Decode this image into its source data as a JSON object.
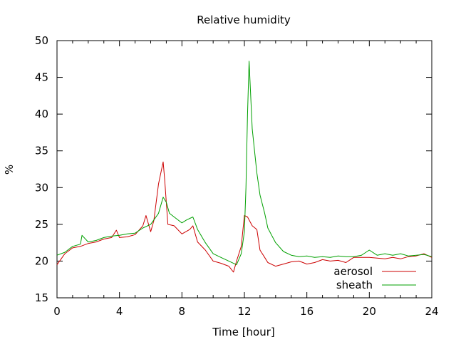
{
  "chart_data": {
    "type": "line",
    "title": "Relative humidity",
    "xlabel": "Time [hour]",
    "ylabel": "%",
    "xlim": [
      0,
      24
    ],
    "ylim": [
      15,
      50
    ],
    "xticks": [
      0,
      4,
      8,
      12,
      16,
      20,
      24
    ],
    "yticks": [
      15,
      20,
      25,
      30,
      35,
      40,
      45,
      50
    ],
    "grid": false,
    "legend_position": "bottom-right",
    "series": [
      {
        "name": "aerosol",
        "color": "#cc0000",
        "x": [
          0,
          0.5,
          1,
          1.5,
          2,
          2.5,
          3,
          3.5,
          3.8,
          4,
          4.5,
          5,
          5.5,
          5.7,
          6,
          6.2,
          6.5,
          6.8,
          6.9,
          7.1,
          7.5,
          8,
          8.5,
          8.7,
          9,
          9.5,
          10,
          10.5,
          11,
          11.3,
          11.5,
          11.8,
          12,
          12.2,
          12.5,
          12.8,
          13,
          13.3,
          13.5,
          14,
          14.5,
          15,
          15.5,
          16,
          16.5,
          17,
          17.5,
          18,
          18.5,
          19,
          19.5,
          20,
          20.5,
          21,
          21.5,
          22,
          22.5,
          23,
          23.5,
          24
        ],
        "values": [
          19.5,
          21,
          21.8,
          22,
          22.4,
          22.6,
          23,
          23.2,
          24.2,
          23.2,
          23.3,
          23.6,
          24.8,
          26.2,
          24,
          25.5,
          30.5,
          33.5,
          31,
          25,
          24.8,
          23.7,
          24.3,
          24.8,
          22.6,
          21.5,
          20,
          19.7,
          19.3,
          18.5,
          20,
          22,
          26.2,
          26,
          24.8,
          24.3,
          21.5,
          20.5,
          19.8,
          19.3,
          19.6,
          19.9,
          20,
          19.6,
          19.8,
          20.2,
          20,
          20.1,
          19.8,
          20.5,
          20.5,
          20.5,
          20.4,
          20.3,
          20.5,
          20.3,
          20.6,
          20.7,
          21,
          20.5
        ]
      },
      {
        "name": "sheath",
        "color": "#00a000",
        "x": [
          0,
          0.5,
          1,
          1.5,
          1.6,
          2,
          2.5,
          3,
          3.5,
          4,
          4.5,
          5,
          5.5,
          6,
          6.5,
          6.8,
          7,
          7.2,
          7.5,
          8,
          8.3,
          8.7,
          9,
          9.5,
          10,
          10.5,
          11,
          11.5,
          11.8,
          12,
          12.1,
          12.2,
          12.3,
          12.5,
          12.8,
          13,
          13.3,
          13.5,
          14,
          14.5,
          15,
          15.5,
          16,
          16.5,
          17,
          17.5,
          18,
          18.5,
          19,
          19.5,
          20,
          20.5,
          21,
          21.5,
          22,
          22.5,
          23,
          23.5,
          24
        ],
        "values": [
          20.8,
          21.2,
          22,
          22.3,
          23.5,
          22.6,
          22.8,
          23.2,
          23.4,
          23.5,
          23.7,
          23.8,
          24.5,
          25,
          26.5,
          28.7,
          28,
          26.5,
          26,
          25.2,
          25.6,
          26,
          24.3,
          22.5,
          21,
          20.5,
          20,
          19.5,
          21,
          24,
          30,
          40,
          47.2,
          38,
          32,
          29,
          26.5,
          24.5,
          22.5,
          21.3,
          20.8,
          20.6,
          20.7,
          20.5,
          20.6,
          20.5,
          20.7,
          20.6,
          20.6,
          20.8,
          21.5,
          20.8,
          21,
          20.8,
          21,
          20.7,
          20.8,
          20.9,
          20.6
        ]
      }
    ]
  }
}
